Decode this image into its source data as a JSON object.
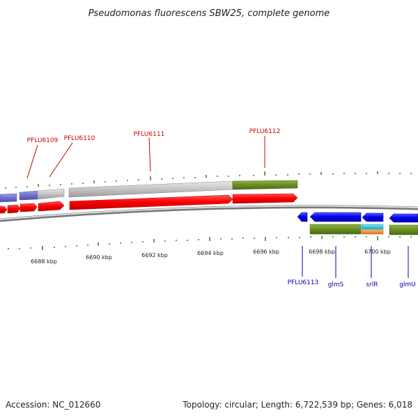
{
  "header": {
    "title": "Pseudomonas fluorescens SBW25, complete genome"
  },
  "scale": {
    "unit": "kbp",
    "ticks": [
      "6688 kbp",
      "6690 kbp",
      "6692 kbp",
      "6694 kbp",
      "6696 kbp",
      "6698 kbp",
      "6700 kbp"
    ]
  },
  "genes_forward": [
    "PFLU6109",
    "PFLU6110",
    "PFLU6111",
    "PFLU6112"
  ],
  "genes_reverse": [
    "PFLU6113",
    "glmS",
    "srlR",
    "glmU"
  ],
  "colors": {
    "forward_cds": "#ff0000",
    "reverse_cds": "#0000ee",
    "gene_grey": "#c0c0c0",
    "gene_green": "#6b8e23",
    "gene_purple": "#7070cc",
    "gene_cyan": "#22c8d8",
    "gene_orange": "#f09030",
    "tick_green": "#2e8b2e",
    "label_forward": "#cc0000",
    "label_reverse": "#0000b0"
  },
  "footer": {
    "accession": "Accession: NC_012660",
    "summary": "Topology: circular; Length: 6,722,539 bp; Genes: 6,018"
  }
}
